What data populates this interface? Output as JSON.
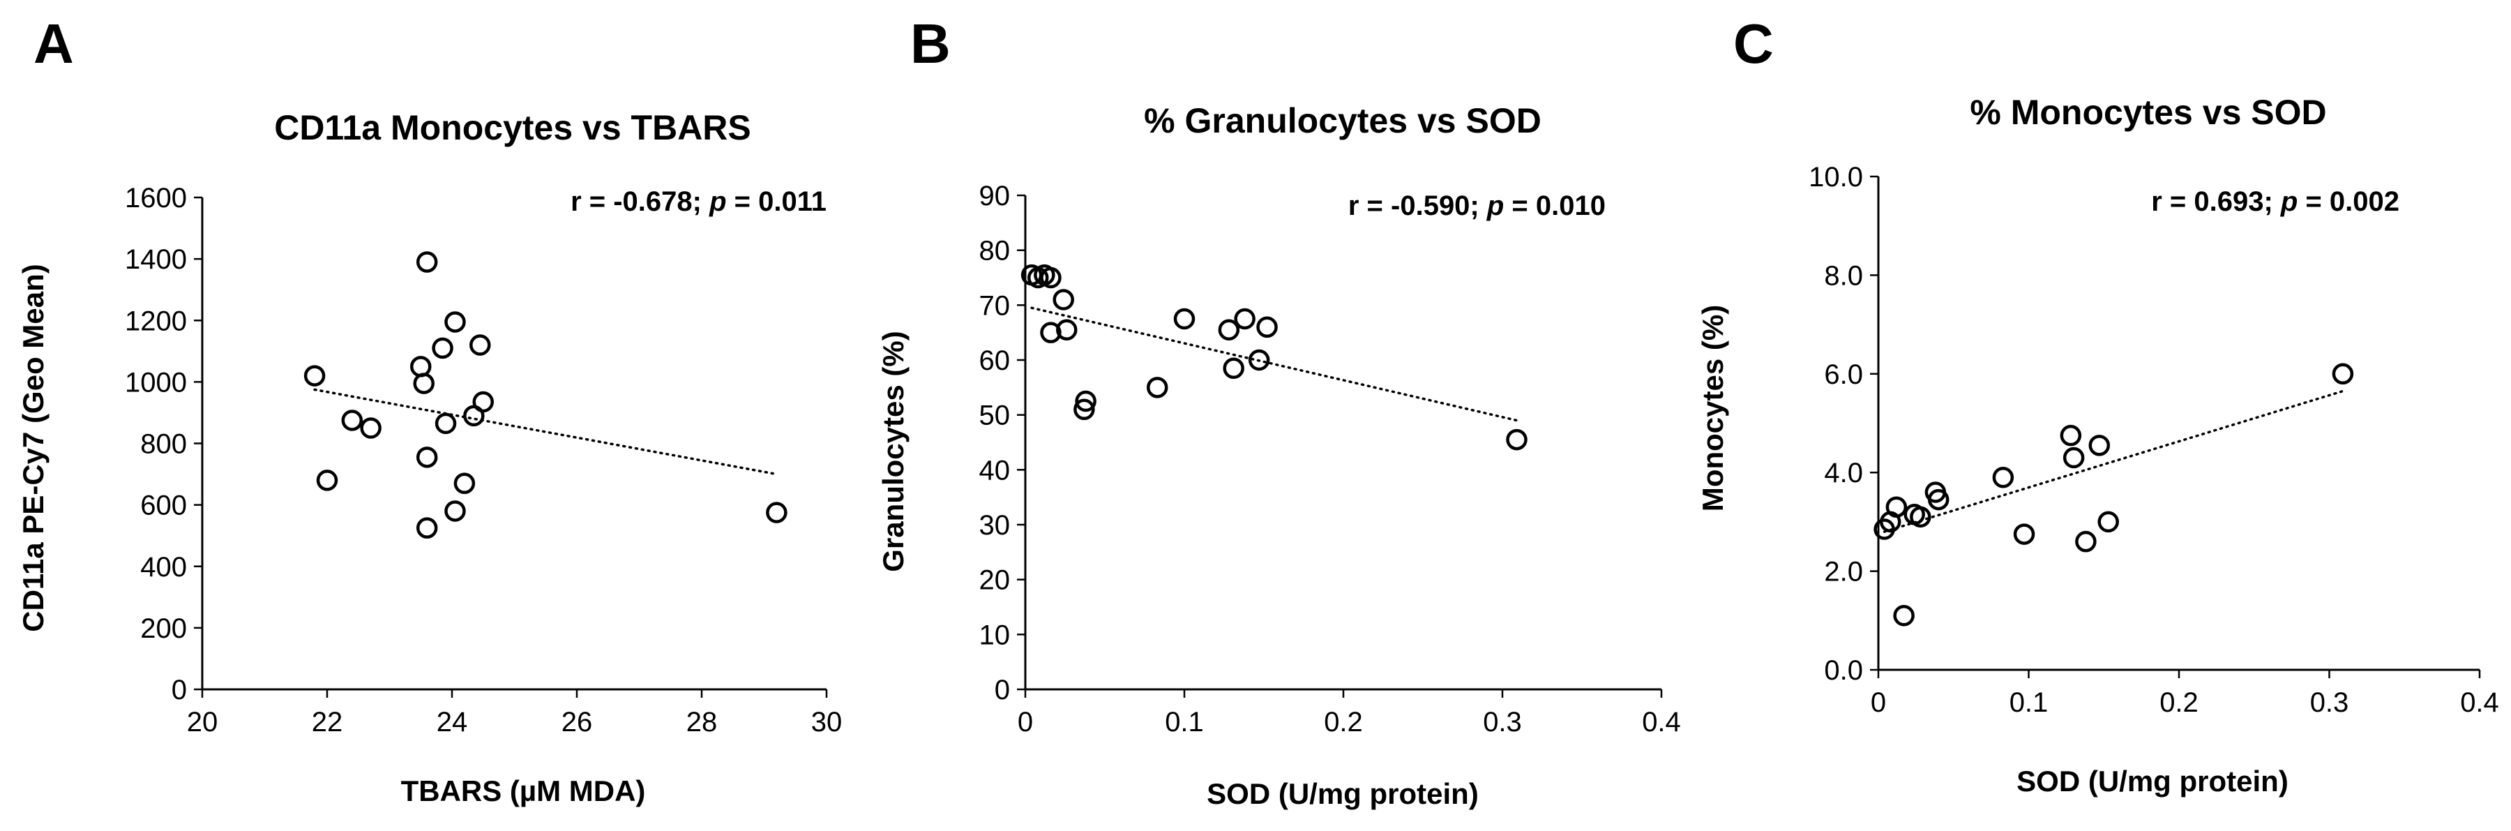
{
  "chart_data": [
    {
      "type": "scatter",
      "panel_letter": "A",
      "title": "CD11a Monocytes  vs TBARS",
      "xlabel": "TBARS (µM MDA)",
      "ylabel": "CD11a PE-Cy7 (Geo Mean)",
      "xlim": [
        20,
        30
      ],
      "ylim": [
        0,
        1600
      ],
      "xticks": [
        20,
        22,
        24,
        26,
        28,
        30
      ],
      "yticks": [
        0,
        200,
        400,
        600,
        800,
        1000,
        1200,
        1400,
        1600
      ],
      "xtick_labels": [
        "20",
        "22",
        "24",
        "26",
        "28",
        "30"
      ],
      "ytick_labels": [
        "0",
        "200",
        "400",
        "600",
        "800",
        "1000",
        "1200",
        "1400",
        "1600"
      ],
      "x": [
        21.8,
        22.0,
        22.4,
        22.7,
        23.5,
        23.55,
        23.6,
        23.6,
        23.6,
        23.85,
        23.9,
        24.05,
        24.05,
        24.2,
        24.35,
        24.45,
        24.5,
        29.2
      ],
      "y": [
        1020,
        680,
        875,
        850,
        1050,
        995,
        1390,
        755,
        525,
        1110,
        865,
        1195,
        580,
        670,
        890,
        1120,
        935,
        575
      ],
      "trendline": {
        "x": [
          21.8,
          29.2
        ],
        "y": [
          975,
          700
        ]
      },
      "stat_r": "r = -0.678; ",
      "stat_p_label": "p",
      "stat_p_value": " = 0.011"
    },
    {
      "type": "scatter",
      "panel_letter": "B",
      "title": "% Granulocytes  vs SOD",
      "xlabel": "SOD (U/mg protein)",
      "ylabel": "Granulocytes (%)",
      "xlim": [
        0,
        0.4
      ],
      "ylim": [
        0,
        90
      ],
      "xticks": [
        0,
        0.1,
        0.2,
        0.3,
        0.4
      ],
      "yticks": [
        0,
        10,
        20,
        30,
        40,
        50,
        60,
        70,
        80,
        90
      ],
      "xtick_labels": [
        "0",
        "0.1",
        "0.2",
        "0.3",
        "0.4"
      ],
      "ytick_labels": [
        "0",
        "10",
        "20",
        "30",
        "40",
        "50",
        "60",
        "70",
        "80",
        "90"
      ],
      "x": [
        0.004,
        0.008,
        0.012,
        0.016,
        0.016,
        0.024,
        0.026,
        0.037,
        0.038,
        0.083,
        0.1,
        0.128,
        0.131,
        0.138,
        0.147,
        0.152,
        0.309
      ],
      "y": [
        75.5,
        75,
        75.5,
        65,
        75,
        71,
        65.5,
        51,
        52.5,
        55,
        67.5,
        65.5,
        58.5,
        67.5,
        60,
        66,
        45.5
      ],
      "trendline": {
        "x": [
          0.004,
          0.309
        ],
        "y": [
          69.5,
          49
        ]
      },
      "stat_r": "r = -0.590; ",
      "stat_p_label": "p",
      "stat_p_value": " = 0.010"
    },
    {
      "type": "scatter",
      "panel_letter": "C",
      "title": "% Monocytes  vs SOD",
      "xlabel": "SOD (U/mg protein)",
      "ylabel": "Monocytes (%)",
      "xlim": [
        0,
        0.4
      ],
      "ylim": [
        0,
        10
      ],
      "xticks": [
        0,
        0.1,
        0.2,
        0.3,
        0.4
      ],
      "yticks": [
        0,
        2,
        4,
        6,
        8,
        10
      ],
      "xtick_labels": [
        "0",
        "0.1",
        "0.2",
        "0.3",
        "0.4"
      ],
      "ytick_labels": [
        "0.0",
        "2.0",
        "4.0",
        "6.0",
        "8.0",
        "10.0"
      ],
      "x": [
        0.004,
        0.008,
        0.012,
        0.017,
        0.024,
        0.028,
        0.038,
        0.04,
        0.083,
        0.097,
        0.128,
        0.13,
        0.138,
        0.147,
        0.153,
        0.309
      ],
      "y": [
        2.85,
        3.0,
        3.3,
        1.1,
        3.15,
        3.1,
        3.6,
        3.45,
        3.9,
        2.75,
        4.75,
        4.3,
        2.6,
        4.55,
        3.0,
        6.0
      ],
      "trendline": {
        "x": [
          0.004,
          0.309
        ],
        "y": [
          2.8,
          5.65
        ]
      },
      "stat_r": "r = 0.693; ",
      "stat_p_label": "p",
      "stat_p_value": " = 0.002"
    }
  ]
}
